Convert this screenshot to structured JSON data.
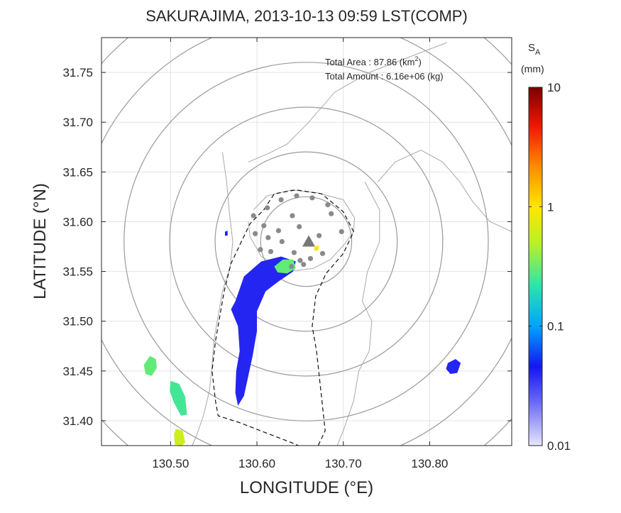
{
  "chart_data": {
    "type": "heatmap",
    "title": "SAKURAJIMA, 2013-10-13 09:59 LST(COMP)",
    "xlabel": "LONGITUDE (°E)",
    "ylabel": "LATITUDE (°N)",
    "xlim": [
      130.42,
      130.895
    ],
    "ylim": [
      31.375,
      31.785
    ],
    "x_ticks": [
      130.5,
      130.6,
      130.7,
      130.8
    ],
    "x_tick_labels": [
      "130.50",
      "130.60",
      "130.70",
      "130.80"
    ],
    "y_ticks": [
      31.4,
      31.45,
      31.5,
      31.55,
      31.6,
      31.65,
      31.7,
      31.75
    ],
    "y_tick_labels": [
      "31.40",
      "31.45",
      "31.50",
      "31.55",
      "31.60",
      "31.65",
      "31.70",
      "31.75"
    ],
    "grid": true,
    "annotations": {
      "area_label": "Total Area   : 87.86 (km",
      "area_sup": "2",
      "area_close": ")",
      "amount_label": "Total Amount : 6.16e+06 (kg)"
    },
    "colorbar": {
      "label_main": "S",
      "label_sub": "A",
      "unit": "(mm)",
      "scale": "log",
      "ticks": [
        0.01,
        0.1,
        1,
        10
      ],
      "tick_labels": [
        "0.01",
        "0.1",
        "1",
        "10"
      ]
    },
    "range_rings": {
      "center": [
        130.657,
        31.58
      ],
      "radii_km": [
        5,
        10,
        15,
        20,
        25,
        30
      ]
    },
    "vent": {
      "name": "Sakurajima",
      "lon": 130.66,
      "lat": 31.58
    },
    "stations": [
      [
        130.612,
        31.614
      ],
      [
        130.628,
        31.622
      ],
      [
        130.646,
        31.626
      ],
      [
        130.664,
        31.624
      ],
      [
        130.682,
        31.617
      ],
      [
        130.596,
        31.606
      ],
      [
        130.641,
        31.606
      ],
      [
        130.686,
        31.608
      ],
      [
        130.608,
        31.596
      ],
      [
        130.598,
        31.588
      ],
      [
        130.613,
        31.584
      ],
      [
        130.625,
        31.591
      ],
      [
        130.629,
        31.58
      ],
      [
        130.649,
        31.595
      ],
      [
        130.672,
        31.586
      ],
      [
        130.698,
        31.59
      ],
      [
        130.604,
        31.572
      ],
      [
        130.616,
        31.57
      ],
      [
        130.643,
        31.569
      ],
      [
        130.662,
        31.563
      ],
      [
        130.676,
        31.568
      ],
      [
        130.65,
        31.561
      ],
      [
        130.64,
        31.555
      ],
      [
        130.654,
        31.557
      ]
    ],
    "ash_regions": [
      {
        "name": "main plume",
        "value_mm": 0.04,
        "poly": [
          [
            130.575,
            31.52
          ],
          [
            130.585,
            31.545
          ],
          [
            130.605,
            31.56
          ],
          [
            130.628,
            31.565
          ],
          [
            130.645,
            31.56
          ],
          [
            130.642,
            31.55
          ],
          [
            130.625,
            31.54
          ],
          [
            130.61,
            31.53
          ],
          [
            130.6,
            31.51
          ],
          [
            130.6,
            31.49
          ],
          [
            130.595,
            31.465
          ],
          [
            130.59,
            31.445
          ],
          [
            130.585,
            31.425
          ],
          [
            130.578,
            31.415
          ],
          [
            130.575,
            31.428
          ],
          [
            130.576,
            31.45
          ],
          [
            130.58,
            31.47
          ],
          [
            130.578,
            31.495
          ],
          [
            130.57,
            31.512
          ]
        ]
      },
      {
        "name": "plume core",
        "value_mm": 0.3,
        "poly": [
          [
            130.62,
            31.555
          ],
          [
            130.63,
            31.562
          ],
          [
            130.642,
            31.562
          ],
          [
            130.645,
            31.553
          ],
          [
            130.635,
            31.548
          ],
          [
            130.624,
            31.549
          ]
        ]
      },
      {
        "name": "vent deposit",
        "value_mm": 1.0,
        "poly": [
          [
            130.667,
            31.575
          ],
          [
            130.672,
            31.576
          ],
          [
            130.671,
            31.571
          ],
          [
            130.666,
            31.571
          ]
        ]
      },
      {
        "name": "east patch",
        "value_mm": 0.04,
        "poly": [
          [
            130.821,
            31.458
          ],
          [
            130.83,
            31.462
          ],
          [
            130.836,
            31.458
          ],
          [
            130.832,
            31.448
          ],
          [
            130.824,
            31.447
          ],
          [
            130.819,
            31.452
          ]
        ]
      },
      {
        "name": "southwest patch 1",
        "value_mm": 0.3,
        "poly": [
          [
            130.469,
            31.456
          ],
          [
            130.476,
            31.465
          ],
          [
            130.483,
            31.462
          ],
          [
            130.484,
            31.453
          ],
          [
            130.478,
            31.445
          ],
          [
            130.471,
            31.447
          ]
        ]
      },
      {
        "name": "southwest patch 2",
        "value_mm": 0.25,
        "poly": [
          [
            130.5,
            31.44
          ],
          [
            130.51,
            31.437
          ],
          [
            130.517,
            31.424
          ],
          [
            130.519,
            31.406
          ],
          [
            130.512,
            31.405
          ],
          [
            130.504,
            31.418
          ],
          [
            130.499,
            31.43
          ]
        ]
      },
      {
        "name": "southwest patch 3",
        "value_mm": 0.6,
        "poly": [
          [
            130.506,
            31.392
          ],
          [
            130.514,
            31.39
          ],
          [
            130.517,
            31.378
          ],
          [
            130.513,
            31.375
          ],
          [
            130.505,
            31.376
          ],
          [
            130.504,
            31.386
          ]
        ]
      },
      {
        "name": "small patch",
        "value_mm": 0.05,
        "poly": [
          [
            130.563,
            31.59
          ],
          [
            130.566,
            31.591
          ],
          [
            130.566,
            31.586
          ],
          [
            130.563,
            31.586
          ]
        ]
      }
    ],
    "coastlines": [
      {
        "name": "sakurajima",
        "poly": [
          [
            130.596,
            31.612
          ],
          [
            130.612,
            31.626
          ],
          [
            130.64,
            31.632
          ],
          [
            130.67,
            31.629
          ],
          [
            130.7,
            31.622
          ],
          [
            130.713,
            31.604
          ],
          [
            130.712,
            31.59
          ],
          [
            130.7,
            31.576
          ],
          [
            130.685,
            31.562
          ],
          [
            130.665,
            31.553
          ],
          [
            130.645,
            31.551
          ],
          [
            130.625,
            31.555
          ],
          [
            130.605,
            31.565
          ],
          [
            130.592,
            31.585
          ],
          [
            130.59,
            31.6
          ]
        ]
      },
      {
        "name": "kirishima-coast",
        "poly": [
          [
            130.59,
            31.66
          ],
          [
            130.612,
            31.668
          ],
          [
            130.635,
            31.678
          ],
          [
            130.66,
            31.7
          ],
          [
            130.69,
            31.73
          ],
          [
            130.73,
            31.75
          ],
          [
            130.76,
            31.76
          ],
          [
            130.79,
            31.77
          ],
          [
            130.82,
            31.78
          ]
        ]
      },
      {
        "name": "osumi-west-coast",
        "poly": [
          [
            130.725,
            31.64
          ],
          [
            130.742,
            31.612
          ],
          [
            130.742,
            31.58
          ],
          [
            130.728,
            31.55
          ],
          [
            130.722,
            31.52
          ],
          [
            130.733,
            31.5
          ],
          [
            130.73,
            31.47
          ],
          [
            130.718,
            31.45
          ],
          [
            130.712,
            31.42
          ],
          [
            130.7,
            31.39
          ],
          [
            130.693,
            31.375
          ]
        ]
      },
      {
        "name": "satsuma-east-coast",
        "poly": [
          [
            130.56,
            31.67
          ],
          [
            130.565,
            31.64
          ],
          [
            130.568,
            31.61
          ],
          [
            130.572,
            31.58
          ],
          [
            130.569,
            31.555
          ],
          [
            130.56,
            31.53
          ],
          [
            130.555,
            31.505
          ],
          [
            130.55,
            31.48
          ],
          [
            130.548,
            31.455
          ],
          [
            130.545,
            31.43
          ],
          [
            130.538,
            31.405
          ],
          [
            130.53,
            31.385
          ],
          [
            130.525,
            31.375
          ]
        ]
      },
      {
        "name": "eastern-coast",
        "poly": [
          [
            130.74,
            31.64
          ],
          [
            130.76,
            31.66
          ],
          [
            130.79,
            31.672
          ],
          [
            130.815,
            31.66
          ],
          [
            130.835,
            31.64
          ],
          [
            130.85,
            31.62
          ],
          [
            130.87,
            31.6
          ],
          [
            130.895,
            31.59
          ]
        ]
      }
    ],
    "dashed_boundary": [
      [
        130.608,
        31.612
      ],
      [
        130.62,
        31.628
      ],
      [
        130.645,
        31.632
      ],
      [
        130.675,
        31.628
      ],
      [
        130.7,
        31.61
      ],
      [
        130.712,
        31.59
      ],
      [
        130.7,
        31.568
      ],
      [
        130.68,
        31.548
      ],
      [
        130.668,
        31.525
      ],
      [
        130.664,
        31.495
      ],
      [
        130.669,
        31.47
      ],
      [
        130.674,
        31.43
      ],
      [
        130.679,
        31.39
      ],
      [
        130.667,
        31.368
      ],
      [
        130.64,
        31.378
      ],
      [
        130.61,
        31.388
      ],
      [
        130.58,
        31.398
      ],
      [
        130.555,
        31.405
      ],
      [
        130.552,
        31.42
      ],
      [
        130.548,
        31.45
      ],
      [
        130.552,
        31.48
      ],
      [
        130.557,
        31.505
      ],
      [
        130.562,
        31.53
      ],
      [
        130.57,
        31.558
      ],
      [
        130.582,
        31.58
      ],
      [
        130.592,
        31.598
      ]
    ]
  }
}
